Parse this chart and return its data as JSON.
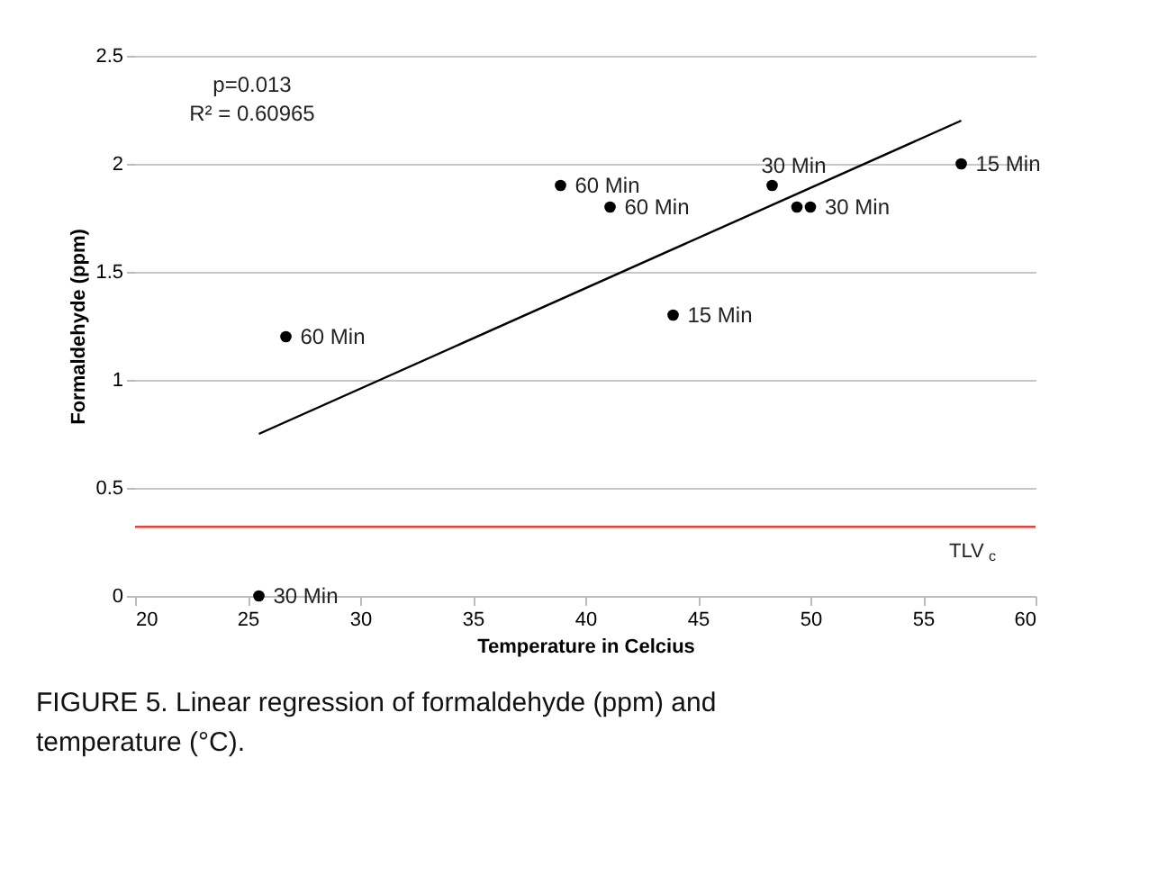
{
  "chart_data": {
    "type": "scatter",
    "xlabel": "Temperature in Celcius",
    "ylabel": "Formaldehyde (ppm)",
    "xlim": [
      20,
      60
    ],
    "xticks": [
      20,
      25,
      30,
      35,
      40,
      45,
      50,
      55,
      60
    ],
    "ylim": [
      0,
      2.5
    ],
    "yticks": [
      0,
      0.5,
      1,
      1.5,
      2,
      2.5
    ],
    "grid": "y",
    "marker": "circle",
    "series": [
      {
        "color": "#000000",
        "x": [
          25.5,
          26.7,
          38.9,
          41.1,
          43.9,
          48.3,
          49.4,
          50.0,
          56.7
        ],
        "values": [
          0,
          1.2,
          1.9,
          1.8,
          1.3,
          1.9,
          1.8,
          1.8,
          2.0
        ]
      },
      {
        "type": "line",
        "color": "#000000",
        "x": [
          25.5,
          56.7
        ],
        "values": [
          0.75,
          2.2
        ],
        "marker": "none",
        "line_style": "solid"
      }
    ],
    "ref_lines": [
      {
        "axis": "y",
        "value": 0.32,
        "label": "TLV$_{c}$",
        "color": "#e8413a"
      }
    ],
    "annotations": [
      {
        "text": "30 Min",
        "x": 25.5,
        "y": 0
      },
      {
        "text": "60 Min",
        "x": 26.7,
        "y": 1.2
      },
      {
        "text": "60 Min",
        "x": 38.9,
        "y": 1.9
      },
      {
        "text": "60 Min",
        "x": 41.1,
        "y": 1.8
      },
      {
        "text": "15 Min",
        "x": 43.9,
        "y": 1.3
      },
      {
        "text": "30 Min",
        "x": 48.3,
        "y": 1.9
      },
      {
        "text": "30 Min",
        "x": 50.0,
        "y": 1.8
      },
      {
        "text": "15 Min",
        "x": 56.7,
        "y": 2.0
      },
      "p=0.013",
      "R² = 0.60965",
      "FIGURE 5.  Linear regression of formaldehyde (ppm) and temperature (°C)."
    ]
  }
}
